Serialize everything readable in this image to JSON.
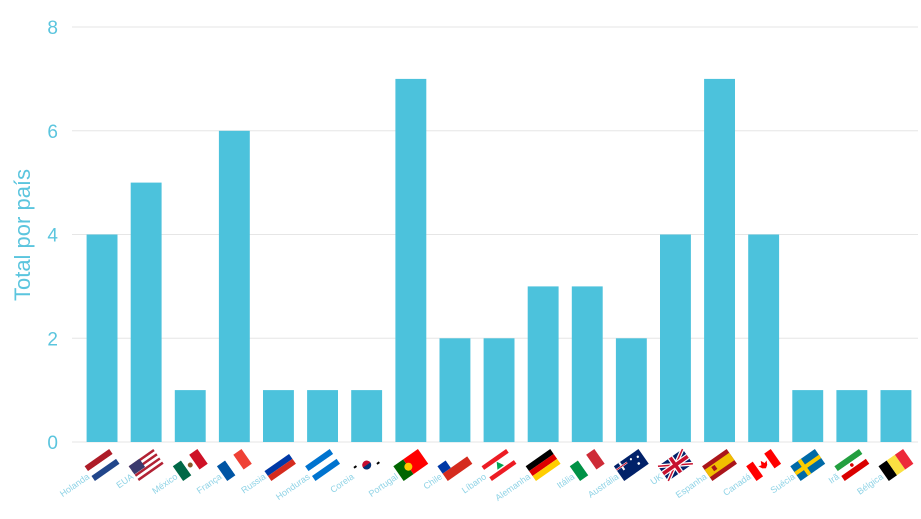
{
  "chart_data": {
    "type": "bar",
    "title": "",
    "xlabel": "",
    "ylabel": "Total por país",
    "ylim": [
      0,
      8
    ],
    "yticks": [
      0,
      2,
      4,
      6,
      8
    ],
    "grid": true,
    "bar_color": "#4cc2dc",
    "categories": [
      "Holanda",
      "EUA",
      "México",
      "França",
      "Russia",
      "Honduras",
      "Coreia",
      "Portugal",
      "Chile",
      "Líbano",
      "Alemanha",
      "Itália",
      "Austrália",
      "UK",
      "Espanha",
      "Canadá",
      "Suécia",
      "Irã",
      "Bélgica"
    ],
    "values": [
      4,
      5,
      1,
      6,
      1,
      1,
      1,
      7,
      2,
      2,
      3,
      3,
      2,
      4,
      7,
      4,
      1,
      1,
      1
    ],
    "flag_icons": [
      "netherlands-flag-icon",
      "usa-flag-icon",
      "mexico-flag-icon",
      "france-flag-icon",
      "russia-flag-icon",
      "honduras-flag-icon",
      "south-korea-flag-icon",
      "portugal-flag-icon",
      "chile-flag-icon",
      "lebanon-flag-icon",
      "germany-flag-icon",
      "italy-flag-icon",
      "australia-flag-icon",
      "uk-flag-icon",
      "spain-flag-icon",
      "canada-flag-icon",
      "sweden-flag-icon",
      "iran-flag-icon",
      "belgium-flag-icon"
    ]
  }
}
